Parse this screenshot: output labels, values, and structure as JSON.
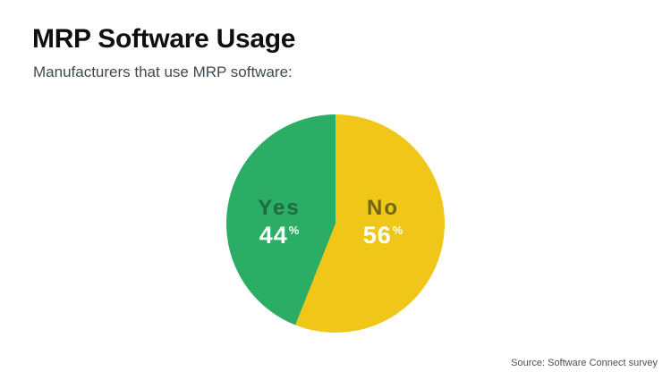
{
  "page": {
    "title": "MRP Software Usage",
    "subtitle": "Manufacturers that use MRP software:",
    "source": "Source: Software Connect survey"
  },
  "chart_data": {
    "type": "pie",
    "title": "MRP Software Usage",
    "subtitle": "Manufacturers that use MRP software:",
    "unit": "%",
    "start_angle_deg": 0,
    "direction": "clockwise",
    "labels_position": "inside",
    "source": "Source: Software Connect survey",
    "slices": [
      {
        "label": "No",
        "value": 56,
        "color": "#F0C619",
        "label_color": "#716511",
        "value_color": "#FFFFFF"
      },
      {
        "label": "Yes",
        "value": 44,
        "color": "#2BAD66",
        "label_color": "#1D6B3E",
        "value_color": "#FFFFFF"
      }
    ]
  }
}
